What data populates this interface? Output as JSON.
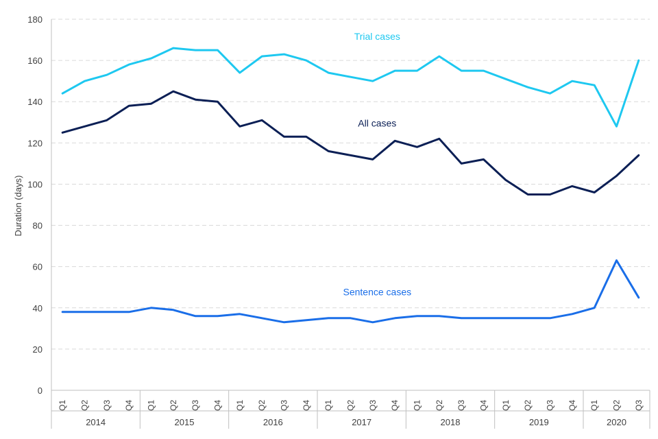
{
  "chart_data": {
    "type": "line",
    "title": "",
    "xlabel": "",
    "ylabel": "Duration (days)",
    "ylim": [
      0,
      180
    ],
    "yticks": [
      0,
      20,
      40,
      60,
      80,
      100,
      120,
      140,
      160,
      180
    ],
    "grid": true,
    "quarters": [
      "Q1",
      "Q2",
      "Q3",
      "Q4",
      "Q1",
      "Q2",
      "Q3",
      "Q4",
      "Q1",
      "Q2",
      "Q3",
      "Q4",
      "Q1",
      "Q2",
      "Q3",
      "Q4",
      "Q1",
      "Q2",
      "Q3",
      "Q4",
      "Q1",
      "Q2",
      "Q3",
      "Q4",
      "Q1",
      "Q2",
      "Q3"
    ],
    "years": [
      {
        "label": "2014",
        "count": 4
      },
      {
        "label": "2015",
        "count": 4
      },
      {
        "label": "2016",
        "count": 4
      },
      {
        "label": "2017",
        "count": 4
      },
      {
        "label": "2018",
        "count": 4
      },
      {
        "label": "2019",
        "count": 4
      },
      {
        "label": "2020",
        "count": 3
      }
    ],
    "series": [
      {
        "name": "Trial cases",
        "color": "#1ec8f0",
        "label_at": {
          "index": 14.7,
          "value": 170
        },
        "values": [
          144,
          150,
          153,
          158,
          161,
          166,
          165,
          165,
          154,
          162,
          163,
          160,
          154,
          152,
          150,
          155,
          155,
          162,
          155,
          155,
          151,
          147,
          144,
          150,
          148,
          128,
          160
        ]
      },
      {
        "name": "All cases",
        "color": "#0b1f55",
        "label_at": {
          "index": 14.7,
          "value": 128
        },
        "values": [
          125,
          128,
          131,
          138,
          139,
          145,
          141,
          140,
          128,
          131,
          123,
          123,
          116,
          114,
          112,
          121,
          118,
          122,
          110,
          112,
          102,
          95,
          95,
          99,
          96,
          104,
          114
        ]
      },
      {
        "name": "Sentence cases",
        "color": "#1a6ee8",
        "label_at": {
          "index": 14.7,
          "value": 46
        },
        "values": [
          38,
          38,
          38,
          38,
          40,
          39,
          36,
          36,
          37,
          35,
          33,
          34,
          35,
          35,
          33,
          35,
          36,
          36,
          35,
          35,
          35,
          35,
          35,
          37,
          40,
          63,
          45
        ]
      }
    ]
  }
}
